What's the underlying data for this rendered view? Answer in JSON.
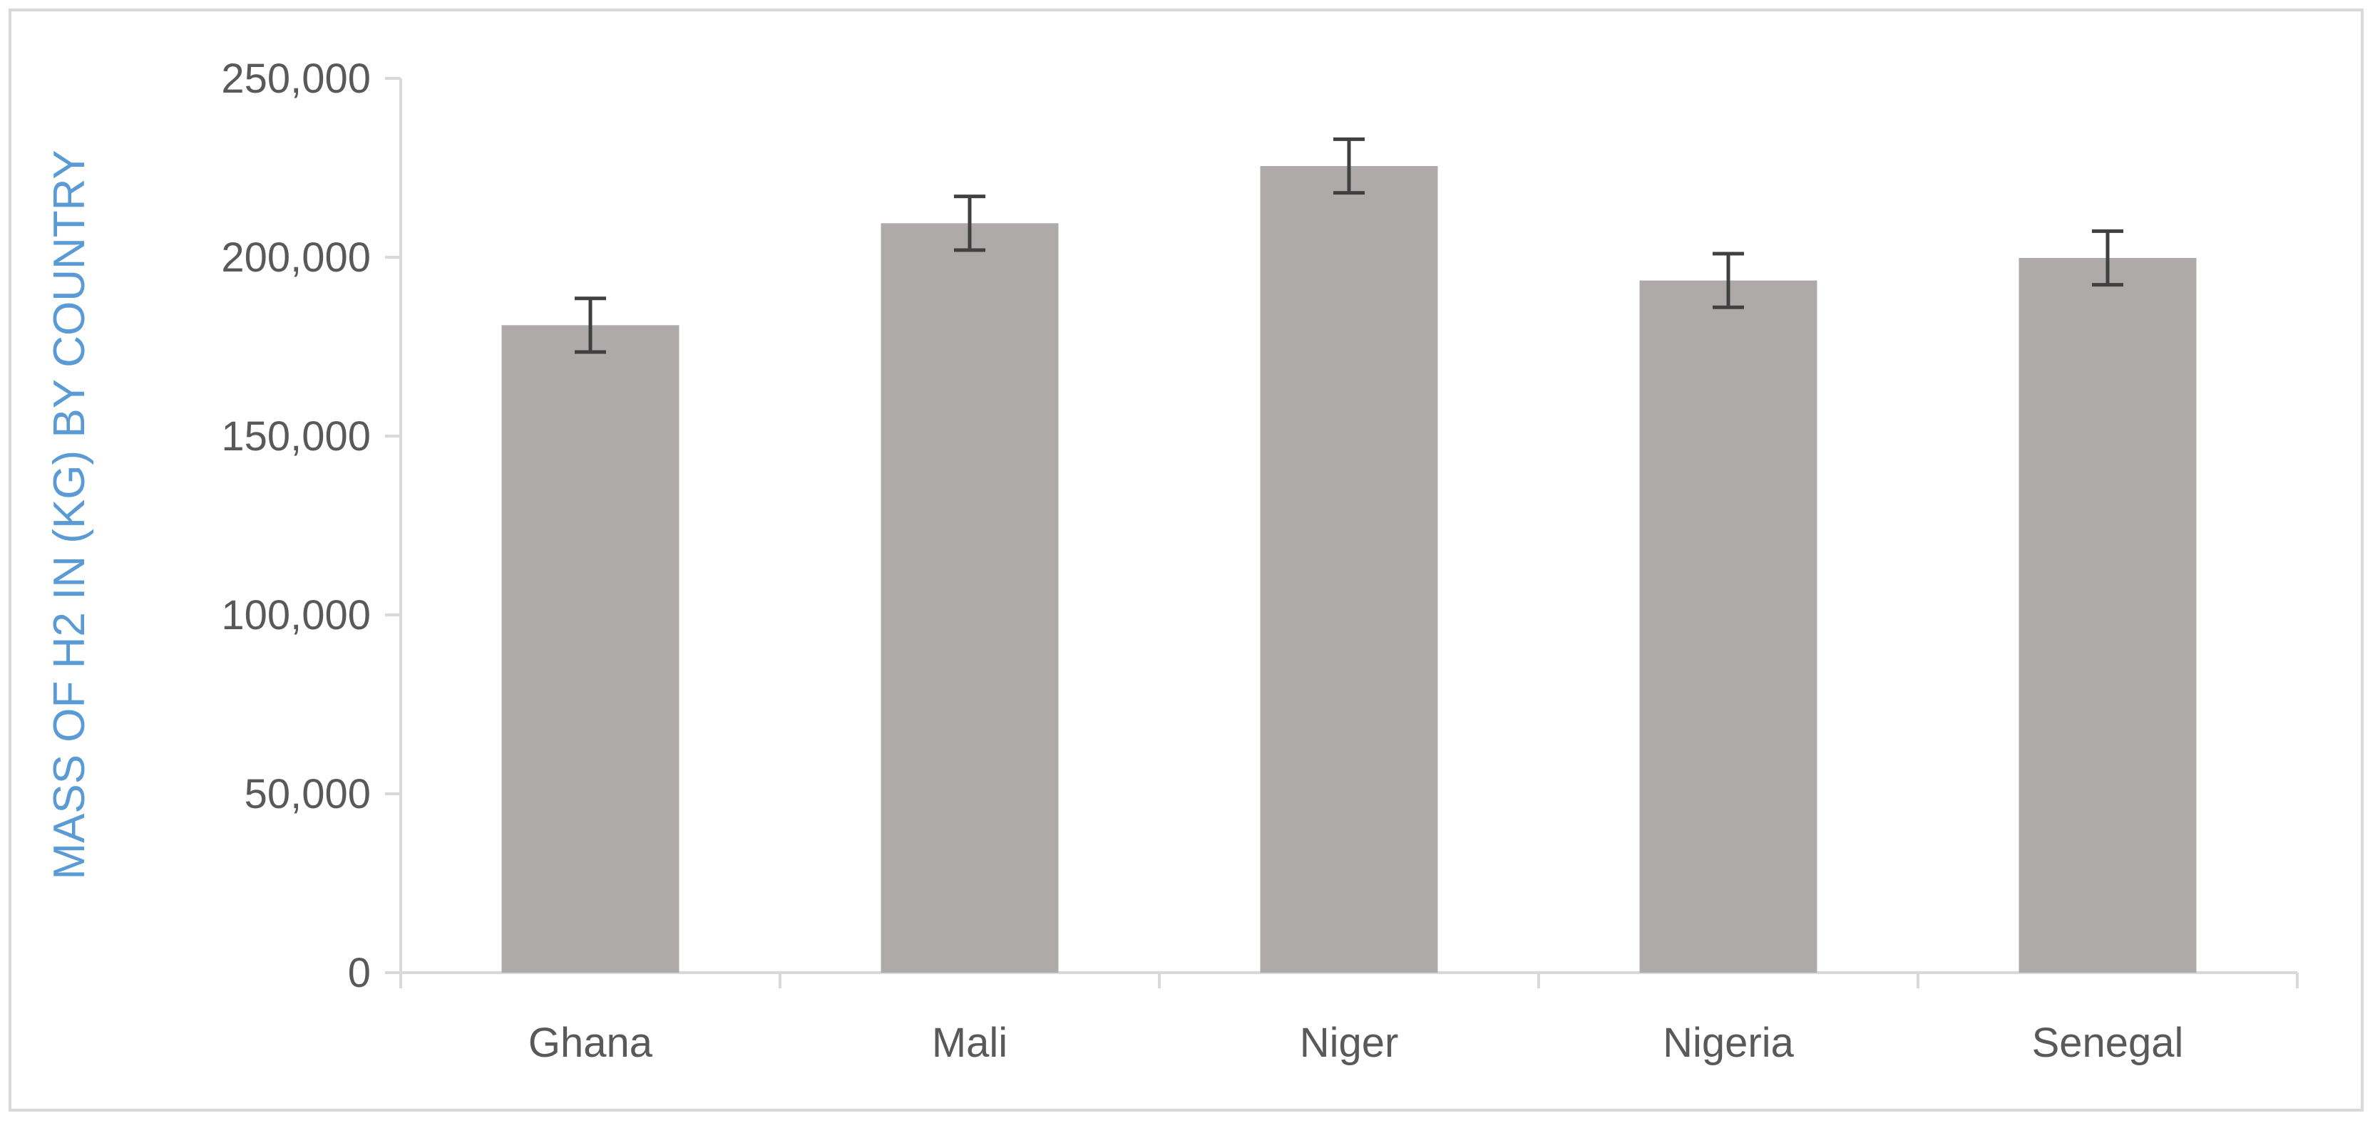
{
  "chart_data": {
    "type": "bar",
    "title": "",
    "xlabel": "",
    "ylabel": "MASS OF H2 IN (KG) BY COUNTRY",
    "categories": [
      "Ghana",
      "Mali",
      "Niger",
      "Nigeria",
      "Senegal"
    ],
    "series": [
      {
        "values": [
          181000,
          209500,
          225500,
          193500,
          199800
        ],
        "error": [
          7500,
          7500,
          7500,
          7500,
          7500
        ],
        "color": "#aeaaaa"
      }
    ],
    "ylim": [
      0,
      250000
    ],
    "yticks": [
      0,
      50000,
      100000,
      150000,
      200000,
      250000
    ],
    "ytick_labels": [
      "0",
      "50,000",
      "100,000",
      "150,000",
      "200,000",
      "250,000"
    ],
    "grid": false,
    "legend": "none",
    "colors": {
      "bar": "#aeaaaa",
      "error_bar": "#404040",
      "axis": "#d9d9d9",
      "tick_text": "#595959",
      "ylabel_text": "#5b9bd5"
    }
  }
}
